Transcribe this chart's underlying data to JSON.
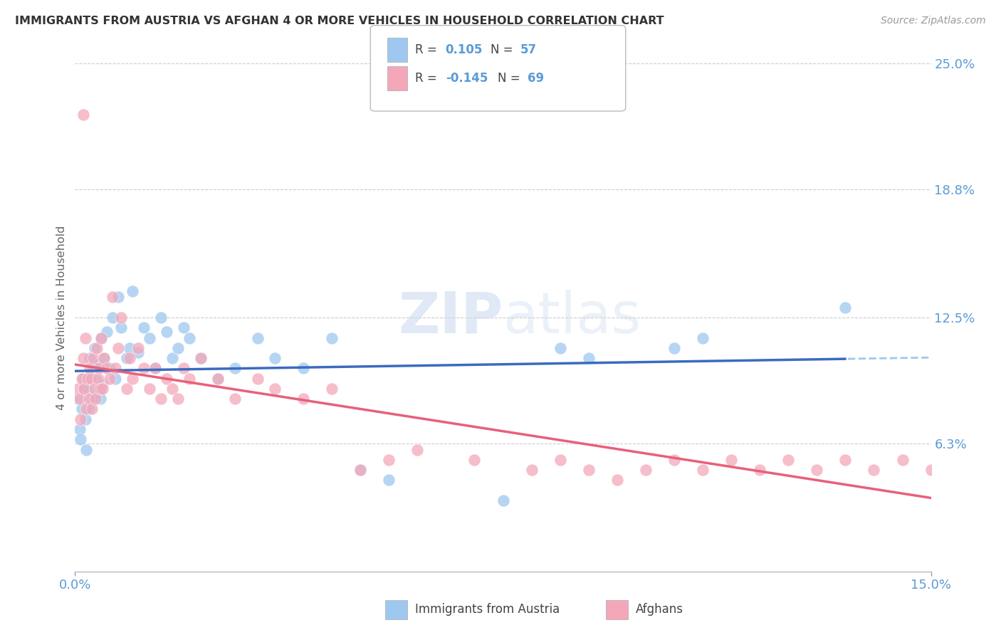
{
  "title": "IMMIGRANTS FROM AUSTRIA VS AFGHAN 4 OR MORE VEHICLES IN HOUSEHOLD CORRELATION CHART",
  "source": "Source: ZipAtlas.com",
  "ylabel": "4 or more Vehicles in Household",
  "x_min": 0.0,
  "x_max": 15.0,
  "y_min": 0.0,
  "y_max": 25.0,
  "x_ticks": [
    0.0,
    15.0
  ],
  "x_tick_labels": [
    "0.0%",
    "15.0%"
  ],
  "y_ticks_right": [
    6.3,
    12.5,
    18.8,
    25.0
  ],
  "y_tick_labels_right": [
    "6.3%",
    "12.5%",
    "18.8%",
    "25.0%"
  ],
  "legend_label1": "Immigrants from Austria",
  "legend_label2": "Afghans",
  "R1": "0.105",
  "N1": "57",
  "R2": "-0.145",
  "N2": "69",
  "color_blue": "#9EC8F0",
  "color_pink": "#F4A7B9",
  "color_blue_line": "#3A6BBF",
  "color_pink_line": "#E8607A",
  "color_axis_label": "#5B9BD5",
  "background": "#FFFFFF",
  "austria_x": [
    0.05,
    0.08,
    0.1,
    0.12,
    0.14,
    0.16,
    0.18,
    0.2,
    0.22,
    0.24,
    0.26,
    0.28,
    0.3,
    0.32,
    0.34,
    0.36,
    0.38,
    0.4,
    0.42,
    0.44,
    0.46,
    0.48,
    0.5,
    0.55,
    0.6,
    0.65,
    0.7,
    0.75,
    0.8,
    0.9,
    0.95,
    1.0,
    1.1,
    1.2,
    1.3,
    1.4,
    1.5,
    1.6,
    1.7,
    1.8,
    1.9,
    2.0,
    2.2,
    2.5,
    2.8,
    3.2,
    3.5,
    4.0,
    4.5,
    5.0,
    5.5,
    7.5,
    8.5,
    9.0,
    10.5,
    11.0,
    13.5
  ],
  "austria_y": [
    8.5,
    7.0,
    6.5,
    8.0,
    9.5,
    9.0,
    7.5,
    6.0,
    9.0,
    8.0,
    10.5,
    9.8,
    8.5,
    10.0,
    11.0,
    9.5,
    8.8,
    10.2,
    9.0,
    8.5,
    11.5,
    9.2,
    10.5,
    11.8,
    10.0,
    12.5,
    9.5,
    13.5,
    12.0,
    10.5,
    11.0,
    13.8,
    10.8,
    12.0,
    11.5,
    10.0,
    12.5,
    11.8,
    10.5,
    11.0,
    12.0,
    11.5,
    10.5,
    9.5,
    10.0,
    11.5,
    10.5,
    10.0,
    11.5,
    5.0,
    4.5,
    3.5,
    11.0,
    10.5,
    11.0,
    11.5,
    13.0
  ],
  "afghan_x": [
    0.05,
    0.08,
    0.1,
    0.12,
    0.14,
    0.16,
    0.18,
    0.2,
    0.22,
    0.24,
    0.26,
    0.28,
    0.3,
    0.32,
    0.34,
    0.36,
    0.38,
    0.4,
    0.42,
    0.44,
    0.46,
    0.48,
    0.5,
    0.55,
    0.6,
    0.65,
    0.7,
    0.75,
    0.8,
    0.9,
    0.95,
    1.0,
    1.1,
    1.2,
    1.3,
    1.4,
    1.5,
    1.6,
    1.7,
    1.8,
    1.9,
    2.0,
    2.2,
    2.5,
    2.8,
    3.2,
    3.5,
    4.0,
    4.5,
    5.0,
    5.5,
    6.0,
    7.0,
    8.0,
    8.5,
    9.0,
    9.5,
    10.0,
    10.5,
    11.0,
    11.5,
    12.0,
    12.5,
    13.0,
    13.5,
    14.0,
    14.5,
    15.0,
    0.15
  ],
  "afghan_y": [
    9.0,
    8.5,
    7.5,
    9.5,
    10.5,
    9.0,
    11.5,
    8.0,
    9.5,
    8.5,
    10.0,
    9.5,
    8.0,
    10.5,
    9.0,
    8.5,
    11.0,
    9.5,
    10.0,
    9.0,
    11.5,
    9.0,
    10.5,
    10.0,
    9.5,
    13.5,
    10.0,
    11.0,
    12.5,
    9.0,
    10.5,
    9.5,
    11.0,
    10.0,
    9.0,
    10.0,
    8.5,
    9.5,
    9.0,
    8.5,
    10.0,
    9.5,
    10.5,
    9.5,
    8.5,
    9.5,
    9.0,
    8.5,
    9.0,
    5.0,
    5.5,
    6.0,
    5.5,
    5.0,
    5.5,
    5.0,
    4.5,
    5.0,
    5.5,
    5.0,
    5.5,
    5.0,
    5.5,
    5.0,
    5.5,
    5.0,
    5.5,
    5.0,
    22.5
  ]
}
